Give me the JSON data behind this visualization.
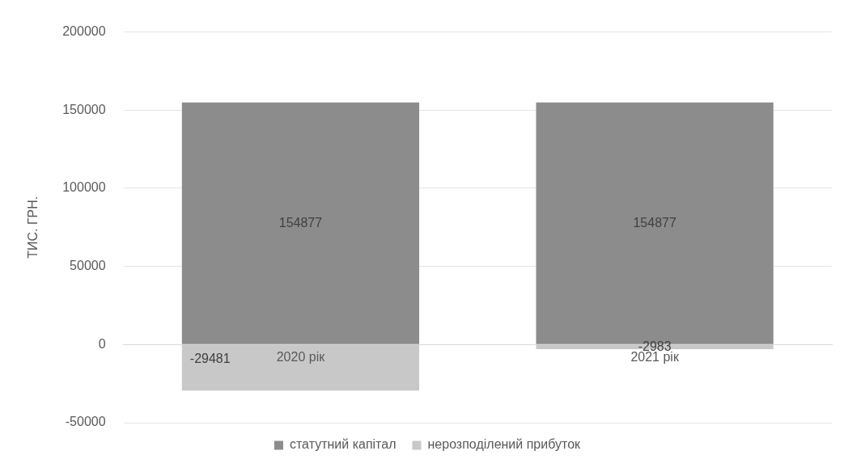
{
  "chart_data": {
    "type": "bar",
    "stacked": true,
    "categories": [
      "2020 рік",
      "2021 рік"
    ],
    "series": [
      {
        "name": "статутний капітал",
        "color": "#8c8c8c",
        "values": [
          154877,
          154877
        ]
      },
      {
        "name": "нерозподілений прибуток",
        "color": "#c8c8c8",
        "values": [
          -29481,
          -2983
        ]
      }
    ],
    "ylabel": "ТИС. ГРН.",
    "ylim": [
      -50000,
      200000
    ],
    "yticks": [
      -50000,
      0,
      50000,
      100000,
      150000,
      200000
    ],
    "grid": "y",
    "legend": "bottom",
    "data_labels": true
  }
}
